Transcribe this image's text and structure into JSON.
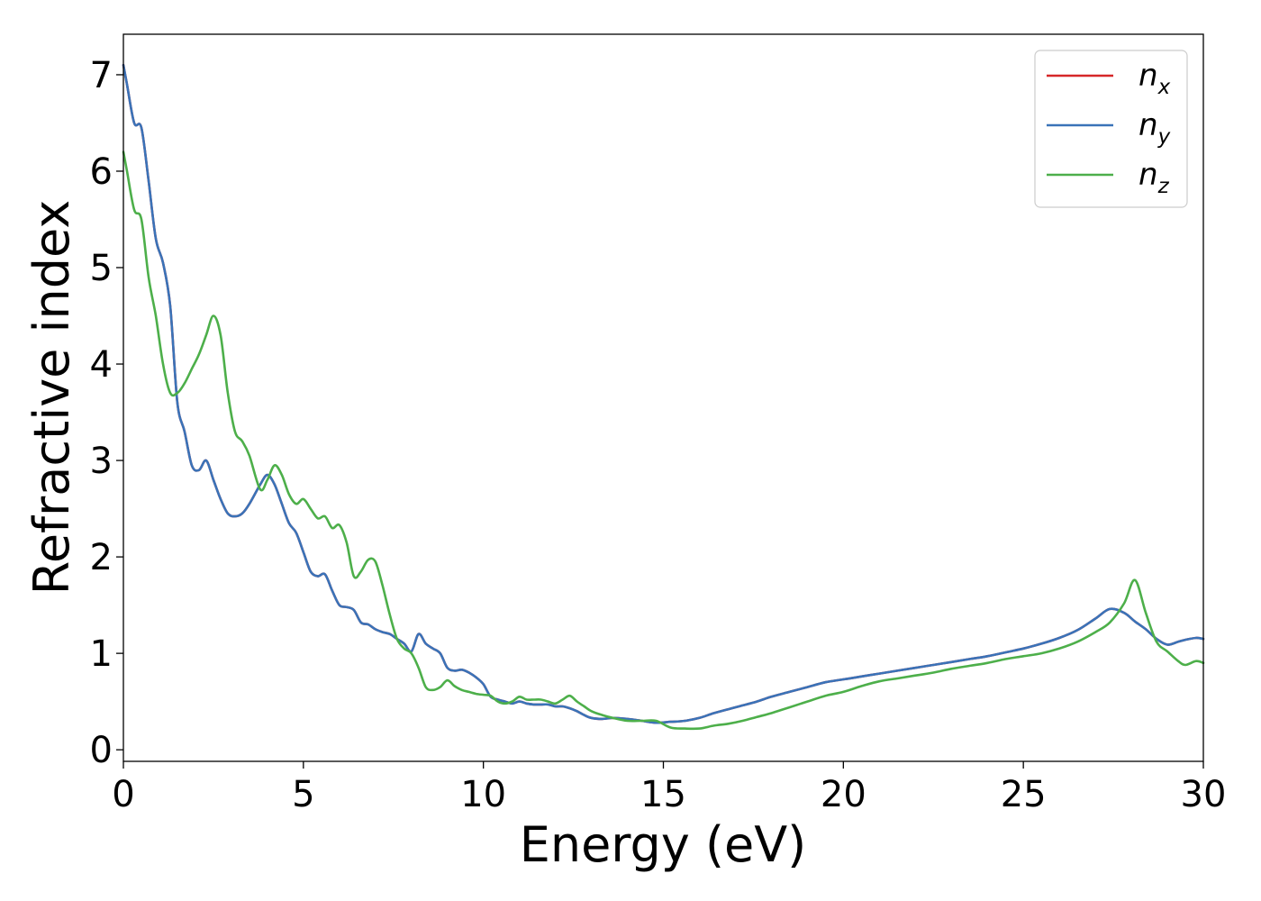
{
  "chart_data": {
    "type": "line",
    "title": "",
    "xlabel": "Energy (eV)",
    "ylabel": "Refractive index",
    "xlim": [
      0,
      30
    ],
    "ylim": [
      -0.12,
      7.42
    ],
    "xticks": [
      "0",
      "5",
      "10",
      "15",
      "20",
      "25",
      "30"
    ],
    "yticks": [
      "0",
      "1",
      "2",
      "3",
      "4",
      "5",
      "6",
      "7"
    ],
    "grid": false,
    "legend_position": "top-right",
    "series": [
      {
        "name": "n",
        "subscript": "x",
        "color": "#d62728",
        "x": [
          0,
          0.1,
          0.3,
          0.5,
          0.7,
          0.9,
          1.1,
          1.3,
          1.5,
          1.7,
          1.9,
          2.1,
          2.3,
          2.5,
          2.7,
          2.9,
          3.1,
          3.3,
          3.5,
          3.8,
          4.0,
          4.2,
          4.4,
          4.6,
          4.8,
          5.0,
          5.2,
          5.4,
          5.6,
          5.8,
          6.0,
          6.2,
          6.4,
          6.6,
          6.8,
          7.0,
          7.2,
          7.4,
          7.6,
          7.8,
          8.0,
          8.2,
          8.4,
          8.6,
          8.8,
          9.0,
          9.2,
          9.4,
          9.6,
          9.8,
          10.0,
          10.2,
          10.4,
          10.6,
          10.8,
          11.0,
          11.2,
          11.4,
          11.6,
          11.8,
          12.0,
          12.2,
          12.4,
          12.6,
          12.8,
          13.0,
          13.3,
          13.6,
          14.0,
          14.4,
          14.8,
          15.2,
          15.6,
          16.0,
          16.4,
          16.8,
          17.2,
          17.6,
          18.0,
          18.5,
          19.0,
          19.5,
          20.0,
          20.5,
          21.0,
          21.5,
          22.0,
          22.5,
          23.0,
          23.5,
          24.0,
          24.5,
          25.0,
          25.5,
          26.0,
          26.5,
          27.0,
          27.4,
          27.8,
          28.1,
          28.4,
          28.7,
          29.0,
          29.3,
          29.5,
          29.8,
          30.0
        ],
        "values": [
          7.1,
          6.9,
          6.5,
          6.45,
          5.9,
          5.3,
          5.05,
          4.6,
          3.6,
          3.3,
          2.95,
          2.9,
          3.0,
          2.8,
          2.6,
          2.45,
          2.42,
          2.45,
          2.55,
          2.75,
          2.85,
          2.75,
          2.55,
          2.35,
          2.25,
          2.05,
          1.85,
          1.8,
          1.82,
          1.65,
          1.5,
          1.48,
          1.45,
          1.32,
          1.3,
          1.25,
          1.22,
          1.2,
          1.15,
          1.1,
          1.02,
          1.2,
          1.1,
          1.05,
          1.0,
          0.85,
          0.82,
          0.83,
          0.8,
          0.75,
          0.68,
          0.55,
          0.52,
          0.5,
          0.48,
          0.5,
          0.48,
          0.47,
          0.47,
          0.47,
          0.45,
          0.45,
          0.43,
          0.4,
          0.36,
          0.33,
          0.32,
          0.33,
          0.32,
          0.3,
          0.28,
          0.29,
          0.3,
          0.33,
          0.38,
          0.42,
          0.46,
          0.5,
          0.55,
          0.6,
          0.65,
          0.7,
          0.73,
          0.76,
          0.79,
          0.82,
          0.85,
          0.88,
          0.91,
          0.94,
          0.97,
          1.01,
          1.05,
          1.1,
          1.16,
          1.24,
          1.36,
          1.46,
          1.42,
          1.33,
          1.25,
          1.15,
          1.09,
          1.12,
          1.14,
          1.16,
          1.15
        ]
      },
      {
        "name": "n",
        "subscript": "y",
        "color": "#3a73b8",
        "x": [
          0,
          0.1,
          0.3,
          0.5,
          0.7,
          0.9,
          1.1,
          1.3,
          1.5,
          1.7,
          1.9,
          2.1,
          2.3,
          2.5,
          2.7,
          2.9,
          3.1,
          3.3,
          3.5,
          3.8,
          4.0,
          4.2,
          4.4,
          4.6,
          4.8,
          5.0,
          5.2,
          5.4,
          5.6,
          5.8,
          6.0,
          6.2,
          6.4,
          6.6,
          6.8,
          7.0,
          7.2,
          7.4,
          7.6,
          7.8,
          8.0,
          8.2,
          8.4,
          8.6,
          8.8,
          9.0,
          9.2,
          9.4,
          9.6,
          9.8,
          10.0,
          10.2,
          10.4,
          10.6,
          10.8,
          11.0,
          11.2,
          11.4,
          11.6,
          11.8,
          12.0,
          12.2,
          12.4,
          12.6,
          12.8,
          13.0,
          13.3,
          13.6,
          14.0,
          14.4,
          14.8,
          15.2,
          15.6,
          16.0,
          16.4,
          16.8,
          17.2,
          17.6,
          18.0,
          18.5,
          19.0,
          19.5,
          20.0,
          20.5,
          21.0,
          21.5,
          22.0,
          22.5,
          23.0,
          23.5,
          24.0,
          24.5,
          25.0,
          25.5,
          26.0,
          26.5,
          27.0,
          27.4,
          27.8,
          28.1,
          28.4,
          28.7,
          29.0,
          29.3,
          29.5,
          29.8,
          30.0
        ],
        "values": [
          7.1,
          6.9,
          6.5,
          6.45,
          5.9,
          5.3,
          5.05,
          4.6,
          3.6,
          3.3,
          2.95,
          2.9,
          3.0,
          2.8,
          2.6,
          2.45,
          2.42,
          2.45,
          2.55,
          2.75,
          2.85,
          2.75,
          2.55,
          2.35,
          2.25,
          2.05,
          1.85,
          1.8,
          1.82,
          1.65,
          1.5,
          1.48,
          1.45,
          1.32,
          1.3,
          1.25,
          1.22,
          1.2,
          1.15,
          1.1,
          1.02,
          1.2,
          1.1,
          1.05,
          1.0,
          0.85,
          0.82,
          0.83,
          0.8,
          0.75,
          0.68,
          0.55,
          0.52,
          0.5,
          0.48,
          0.5,
          0.48,
          0.47,
          0.47,
          0.47,
          0.45,
          0.45,
          0.43,
          0.4,
          0.36,
          0.33,
          0.32,
          0.33,
          0.32,
          0.3,
          0.28,
          0.29,
          0.3,
          0.33,
          0.38,
          0.42,
          0.46,
          0.5,
          0.55,
          0.6,
          0.65,
          0.7,
          0.73,
          0.76,
          0.79,
          0.82,
          0.85,
          0.88,
          0.91,
          0.94,
          0.97,
          1.01,
          1.05,
          1.1,
          1.16,
          1.24,
          1.36,
          1.46,
          1.42,
          1.33,
          1.25,
          1.15,
          1.09,
          1.12,
          1.14,
          1.16,
          1.15
        ]
      },
      {
        "name": "n",
        "subscript": "z",
        "color": "#4daf4a",
        "x": [
          0,
          0.1,
          0.3,
          0.5,
          0.7,
          0.9,
          1.1,
          1.3,
          1.5,
          1.7,
          1.9,
          2.1,
          2.3,
          2.5,
          2.7,
          2.9,
          3.1,
          3.3,
          3.5,
          3.8,
          4.0,
          4.2,
          4.4,
          4.6,
          4.8,
          5.0,
          5.2,
          5.4,
          5.6,
          5.8,
          6.0,
          6.2,
          6.4,
          6.6,
          6.8,
          7.0,
          7.2,
          7.4,
          7.6,
          7.8,
          8.0,
          8.2,
          8.4,
          8.6,
          8.8,
          9.0,
          9.2,
          9.4,
          9.6,
          9.8,
          10.0,
          10.2,
          10.4,
          10.6,
          10.8,
          11.0,
          11.2,
          11.4,
          11.6,
          11.8,
          12.0,
          12.2,
          12.4,
          12.6,
          12.8,
          13.0,
          13.3,
          13.6,
          14.0,
          14.4,
          14.8,
          15.2,
          15.6,
          16.0,
          16.4,
          16.8,
          17.2,
          17.6,
          18.0,
          18.5,
          19.0,
          19.5,
          20.0,
          20.5,
          21.0,
          21.5,
          22.0,
          22.5,
          23.0,
          23.5,
          24.0,
          24.5,
          25.0,
          25.5,
          26.0,
          26.5,
          27.0,
          27.4,
          27.8,
          28.1,
          28.4,
          28.7,
          29.0,
          29.3,
          29.5,
          29.8,
          30.0
        ],
        "values": [
          6.2,
          6.0,
          5.6,
          5.5,
          4.9,
          4.5,
          4.0,
          3.7,
          3.7,
          3.8,
          3.95,
          4.1,
          4.3,
          4.5,
          4.3,
          3.7,
          3.3,
          3.2,
          3.05,
          2.7,
          2.8,
          2.95,
          2.85,
          2.65,
          2.55,
          2.6,
          2.5,
          2.4,
          2.42,
          2.3,
          2.33,
          2.15,
          1.8,
          1.85,
          1.97,
          1.95,
          1.7,
          1.4,
          1.15,
          1.05,
          1.0,
          0.85,
          0.65,
          0.62,
          0.65,
          0.72,
          0.66,
          0.62,
          0.6,
          0.58,
          0.57,
          0.56,
          0.5,
          0.48,
          0.5,
          0.55,
          0.52,
          0.52,
          0.52,
          0.5,
          0.48,
          0.52,
          0.56,
          0.5,
          0.45,
          0.4,
          0.36,
          0.33,
          0.3,
          0.3,
          0.3,
          0.23,
          0.22,
          0.22,
          0.25,
          0.27,
          0.3,
          0.34,
          0.38,
          0.44,
          0.5,
          0.56,
          0.6,
          0.66,
          0.71,
          0.74,
          0.77,
          0.8,
          0.84,
          0.87,
          0.9,
          0.94,
          0.97,
          1.0,
          1.05,
          1.12,
          1.22,
          1.32,
          1.52,
          1.76,
          1.42,
          1.12,
          1.02,
          0.92,
          0.88,
          0.92,
          0.9
        ]
      }
    ]
  }
}
